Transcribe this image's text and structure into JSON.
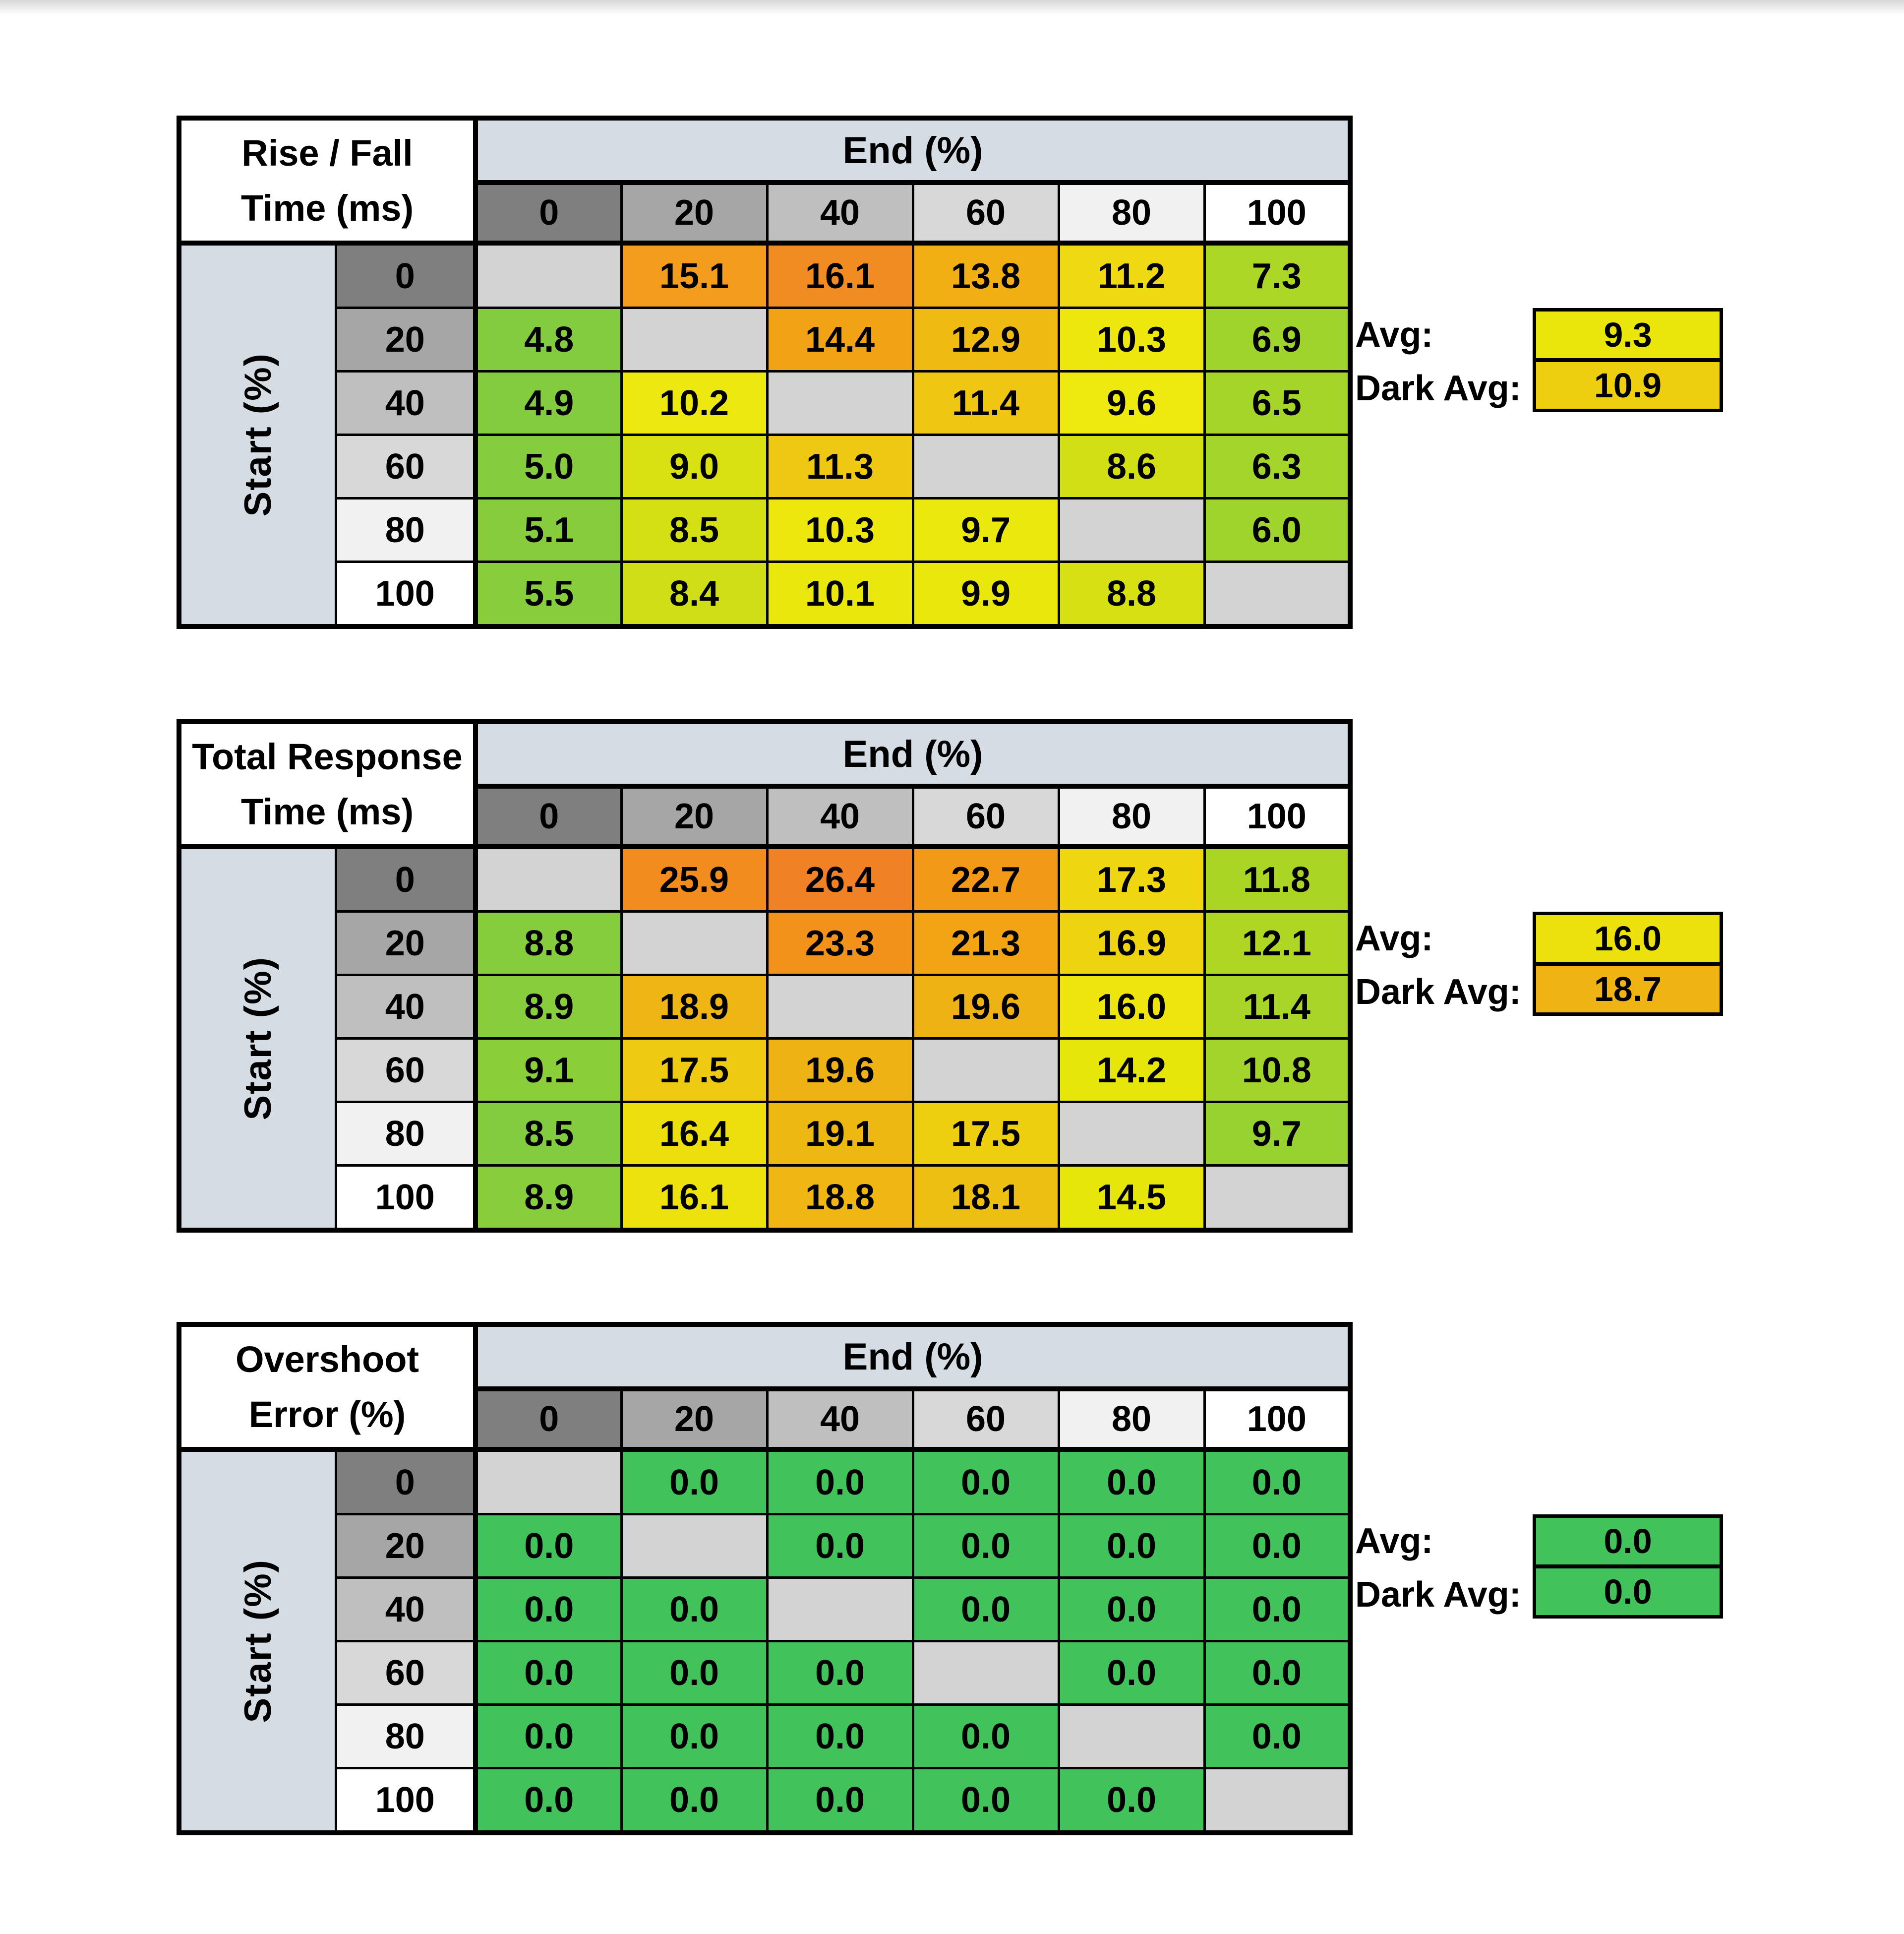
{
  "window": {
    "top_edge_color": "#d7d7d7",
    "background": "#ffffff"
  },
  "shared": {
    "x_axis_title": "End (%)",
    "y_axis_title": "Start (%)",
    "avg_label": "Avg:",
    "dark_avg_label": "Dark Avg:",
    "header_gray_colors": [
      "#7F7F7F",
      "#A6A6A6",
      "#BFBFBF",
      "#D8D8D8",
      "#F1F1F1",
      "#FFFFFF"
    ],
    "band_color": "#D6DCE4",
    "blank_cell_color": "#D3D3D3",
    "border_color": "#000000"
  },
  "chart_data": [
    {
      "id": "rise-fall-time",
      "type": "heatmap",
      "title_lines": [
        "Rise / Fall",
        "Time (ms)"
      ],
      "x_title": "End (%)",
      "y_title": "Start (%)",
      "x_categories": [
        "0",
        "20",
        "40",
        "60",
        "80",
        "100"
      ],
      "y_categories": [
        "0",
        "20",
        "40",
        "60",
        "80",
        "100"
      ],
      "values": [
        [
          null,
          15.1,
          16.1,
          13.8,
          11.2,
          7.3
        ],
        [
          4.8,
          null,
          14.4,
          12.9,
          10.3,
          6.9
        ],
        [
          4.9,
          10.2,
          null,
          11.4,
          9.6,
          6.5
        ],
        [
          5.0,
          9.0,
          11.3,
          null,
          8.6,
          6.3
        ],
        [
          5.1,
          8.5,
          10.3,
          9.7,
          null,
          6.0
        ],
        [
          5.5,
          8.4,
          10.1,
          9.9,
          8.8,
          null
        ]
      ],
      "cell_colors": [
        [
          null,
          "#F39C1D",
          "#F18C23",
          "#F1AF14",
          "#EFD912",
          "#ACD726"
        ],
        [
          "#84CC3F",
          null,
          "#F2A315",
          "#EFBB12",
          "#EDE70E",
          "#9ED42B"
        ],
        [
          "#84CC3F",
          "#EDE80F",
          null,
          "#EFC713",
          "#EEE90E",
          "#A6D529"
        ],
        [
          "#85CC3E",
          "#D9E112",
          "#EFC813",
          null,
          "#D2DF14",
          "#A4D52A"
        ],
        [
          "#86CC3D",
          "#D4DF14",
          "#EDE70E",
          "#EBE80D",
          null,
          "#9FD42D"
        ],
        [
          "#87CD3C",
          "#CFDE16",
          "#EAE70D",
          "#EAE70D",
          "#D6E013",
          null
        ]
      ],
      "avg": {
        "label": "Avg:",
        "value": "9.3",
        "color": "#EAE60C"
      },
      "dark_avg": {
        "label": "Dark Avg:",
        "value": "10.9",
        "color": "#EECF10"
      }
    },
    {
      "id": "total-response-time",
      "type": "heatmap",
      "title_lines": [
        "Total Response",
        "Time (ms)"
      ],
      "x_title": "End (%)",
      "y_title": "Start (%)",
      "x_categories": [
        "0",
        "20",
        "40",
        "60",
        "80",
        "100"
      ],
      "y_categories": [
        "0",
        "20",
        "40",
        "60",
        "80",
        "100"
      ],
      "values": [
        [
          null,
          25.9,
          26.4,
          22.7,
          17.3,
          11.8
        ],
        [
          8.8,
          null,
          23.3,
          21.3,
          16.9,
          12.1
        ],
        [
          8.9,
          18.9,
          null,
          19.6,
          16.0,
          11.4
        ],
        [
          9.1,
          17.5,
          19.6,
          null,
          14.2,
          10.8
        ],
        [
          8.5,
          16.4,
          19.1,
          17.5,
          null,
          9.7
        ],
        [
          8.9,
          16.1,
          18.8,
          18.1,
          14.5,
          null
        ]
      ],
      "cell_colors": [
        [
          null,
          "#F28C1E",
          "#F08125",
          "#F29A18",
          "#EED711",
          "#ABD525"
        ],
        [
          "#86CD3D",
          null,
          "#F2921B",
          "#F2A415",
          "#EED311",
          "#AFD623"
        ],
        [
          "#87CD3C",
          "#EFB514",
          null,
          "#EFB215",
          "#EDE50D",
          "#A8D528"
        ],
        [
          "#8ACE39",
          "#EECA12",
          "#EFB215",
          null,
          "#E6E60B",
          "#A3D42B"
        ],
        [
          "#84CC3F",
          "#EDDF0E",
          "#EEB813",
          "#EDCF10",
          null,
          "#98D230"
        ],
        [
          "#87CD3C",
          "#EDE20E",
          "#EFB614",
          "#EEBF13",
          "#E7E60A",
          null
        ]
      ],
      "avg": {
        "label": "Avg:",
        "value": "16.0",
        "color": "#EDE10D"
      },
      "dark_avg": {
        "label": "Dark Avg:",
        "value": "18.7",
        "color": "#EFB414"
      }
    },
    {
      "id": "overshoot-error",
      "type": "heatmap",
      "title_lines": [
        "Overshoot",
        "Error (%)"
      ],
      "x_title": "End (%)",
      "y_title": "Start (%)",
      "x_categories": [
        "0",
        "20",
        "40",
        "60",
        "80",
        "100"
      ],
      "y_categories": [
        "0",
        "20",
        "40",
        "60",
        "80",
        "100"
      ],
      "values": [
        [
          null,
          0.0,
          0.0,
          0.0,
          0.0,
          0.0
        ],
        [
          0.0,
          null,
          0.0,
          0.0,
          0.0,
          0.0
        ],
        [
          0.0,
          0.0,
          null,
          0.0,
          0.0,
          0.0
        ],
        [
          0.0,
          0.0,
          0.0,
          null,
          0.0,
          0.0
        ],
        [
          0.0,
          0.0,
          0.0,
          0.0,
          null,
          0.0
        ],
        [
          0.0,
          0.0,
          0.0,
          0.0,
          0.0,
          null
        ]
      ],
      "cell_colors": [
        [
          null,
          "#41C25A",
          "#41C25A",
          "#41C25A",
          "#41C25A",
          "#41C25A"
        ],
        [
          "#41C25A",
          null,
          "#41C25A",
          "#41C25A",
          "#41C25A",
          "#41C25A"
        ],
        [
          "#41C25A",
          "#41C25A",
          null,
          "#41C25A",
          "#41C25A",
          "#41C25A"
        ],
        [
          "#41C25A",
          "#41C25A",
          "#41C25A",
          null,
          "#41C25A",
          "#41C25A"
        ],
        [
          "#41C25A",
          "#41C25A",
          "#41C25A",
          "#41C25A",
          null,
          "#41C25A"
        ],
        [
          "#41C25A",
          "#41C25A",
          "#41C25A",
          "#41C25A",
          "#41C25A",
          null
        ]
      ],
      "avg": {
        "label": "Avg:",
        "value": "0.0",
        "color": "#41C25A"
      },
      "dark_avg": {
        "label": "Dark Avg:",
        "value": "0.0",
        "color": "#41C25A"
      }
    }
  ]
}
